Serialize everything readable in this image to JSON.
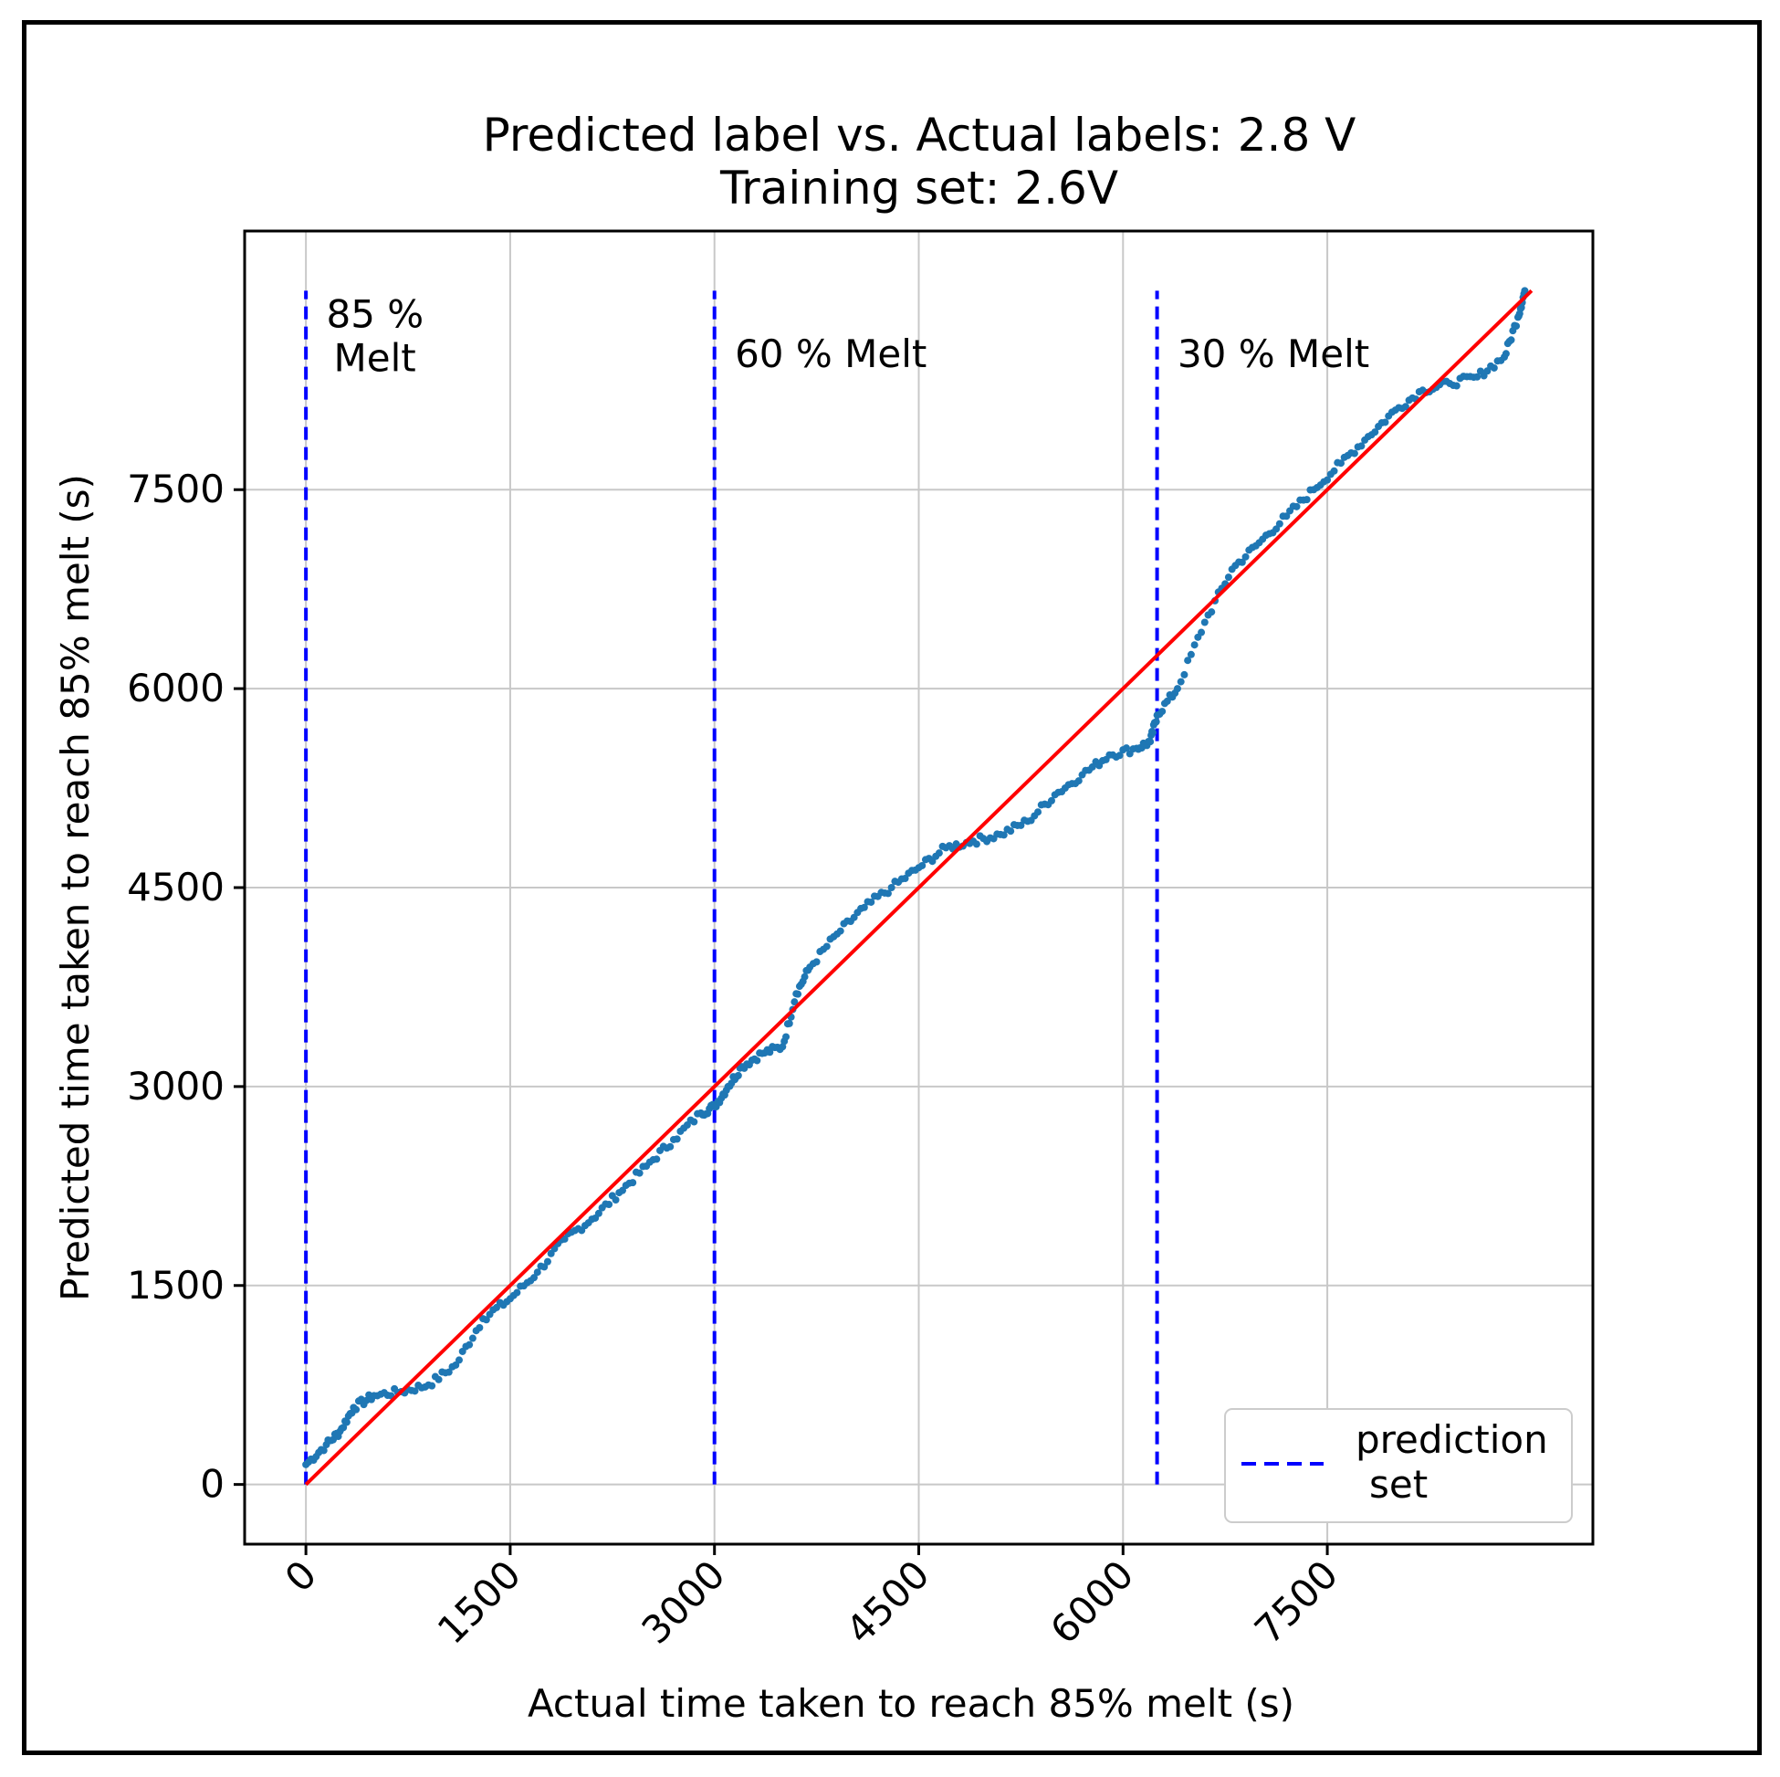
{
  "chart_data": {
    "type": "scatter",
    "title": "Predicted label vs. Actual labels: 2.8 V",
    "subtitle": "Training set: 2.6V",
    "xlabel": "Actual time taken to reach 85% melt (s)",
    "ylabel": "Predicted time taken to reach 85% melt (s)",
    "xlim": [
      -450,
      9450
    ],
    "ylim": [
      -450,
      9450
    ],
    "xticks": [
      0,
      1500,
      3000,
      4500,
      6000,
      7500
    ],
    "yticks": [
      0,
      1500,
      3000,
      4500,
      6000,
      7500
    ],
    "xtick_labels": [
      "0",
      "1500",
      "3000",
      "4500",
      "6000",
      "7500"
    ],
    "ytick_labels": [
      "0",
      "1500",
      "3000",
      "4500",
      "6000",
      "7500"
    ],
    "grid": true,
    "series": [
      {
        "name": "predictions",
        "kind": "scatter",
        "color": "#1f77b4",
        "x": [
          0,
          150,
          250,
          350,
          500,
          700,
          900,
          1100,
          1300,
          1500,
          1700,
          1900,
          2100,
          2300,
          2500,
          2700,
          2900,
          3000,
          3100,
          3200,
          3350,
          3500,
          3600,
          3700,
          3900,
          4100,
          4300,
          4500,
          4700,
          4900,
          5100,
          5300,
          5500,
          5700,
          5900,
          6100,
          6200,
          6250,
          6400,
          6600,
          6800,
          7000,
          7200,
          7400,
          7600,
          7800,
          8000,
          8200,
          8400,
          8600,
          8800,
          8900,
          8950
        ],
        "y": [
          150,
          300,
          400,
          580,
          670,
          700,
          750,
          900,
          1250,
          1400,
          1600,
          1850,
          2000,
          2200,
          2400,
          2600,
          2800,
          2850,
          3000,
          3150,
          3250,
          3300,
          3700,
          3900,
          4150,
          4350,
          4500,
          4650,
          4800,
          4850,
          4900,
          5000,
          5200,
          5350,
          5500,
          5550,
          5600,
          5800,
          6000,
          6500,
          6900,
          7100,
          7300,
          7500,
          7700,
          7900,
          8100,
          8250,
          8300,
          8350,
          8500,
          8800,
          9000
        ]
      },
      {
        "name": "ideal",
        "kind": "line",
        "color": "#ff0000",
        "x": [
          0,
          9000
        ],
        "y": [
          0,
          9000
        ]
      }
    ],
    "vlines": [
      {
        "x": 0,
        "y_from": 0,
        "y_to": 9000,
        "color": "#0000ff",
        "style": "dashed",
        "label": "85 % Melt"
      },
      {
        "x": 3000,
        "y_from": 0,
        "y_to": 9000,
        "color": "#0000ff",
        "style": "dashed",
        "label": "60 % Melt"
      },
      {
        "x": 6250,
        "y_from": 0,
        "y_to": 9000,
        "color": "#0000ff",
        "style": "dashed",
        "label": "30 % Melt"
      }
    ],
    "annotations": [
      {
        "lines": [
          "85 %",
          "Melt"
        ],
        "x": 150,
        "y": 9000
      },
      {
        "lines": [
          "60 % Melt"
        ],
        "x": 3150,
        "y": 8700
      },
      {
        "lines": [
          "30 % Melt"
        ],
        "x": 6400,
        "y": 8700
      }
    ],
    "legend": {
      "position": "bottom-right",
      "entries": [
        {
          "label_lines": [
            "prediction",
            "set"
          ],
          "color": "#0000ff",
          "style": "dashed"
        }
      ]
    }
  }
}
